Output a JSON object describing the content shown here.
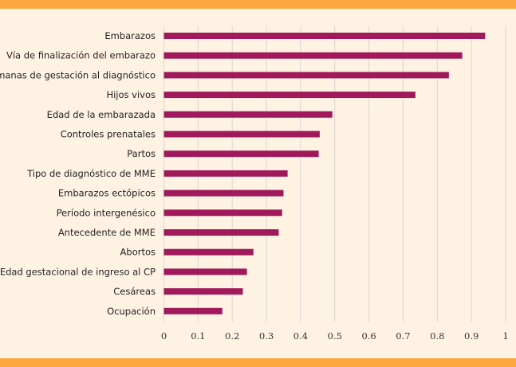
{
  "chart_data": {
    "type": "bar",
    "orientation": "horizontal",
    "title": "",
    "xlabel": "",
    "ylabel": "",
    "categories": [
      "Embarazos",
      "Vía de finalización del embarazo",
      "Semanas de gestación al diagnóstico",
      "Hijos vivos",
      "Edad de la embarazada",
      "Controles prenatales",
      "Partos",
      "Tipo de diagnóstico de MME",
      "Embarazos ectópicos",
      "Período intergenésico",
      "Antecedente de MME",
      "Abortos",
      "Edad gestacional de ingreso al CP",
      "Cesáreas",
      "Ocupación"
    ],
    "values": [
      0.94,
      0.873,
      0.834,
      0.736,
      0.493,
      0.456,
      0.453,
      0.362,
      0.35,
      0.346,
      0.336,
      0.262,
      0.243,
      0.231,
      0.171
    ],
    "xlim": [
      0,
      1
    ],
    "xticks": [
      "0",
      "0.1",
      "0.2",
      "0.3",
      "0.4",
      "0.5",
      "0.6",
      "0.7",
      "0.8",
      "0.9",
      "1"
    ],
    "grid": "vertical",
    "legend": "none",
    "colors": {
      "bar": "#a0195a",
      "band": "#f9a73e",
      "background": "#fef2e3",
      "grid": "#d6d6d6"
    }
  }
}
